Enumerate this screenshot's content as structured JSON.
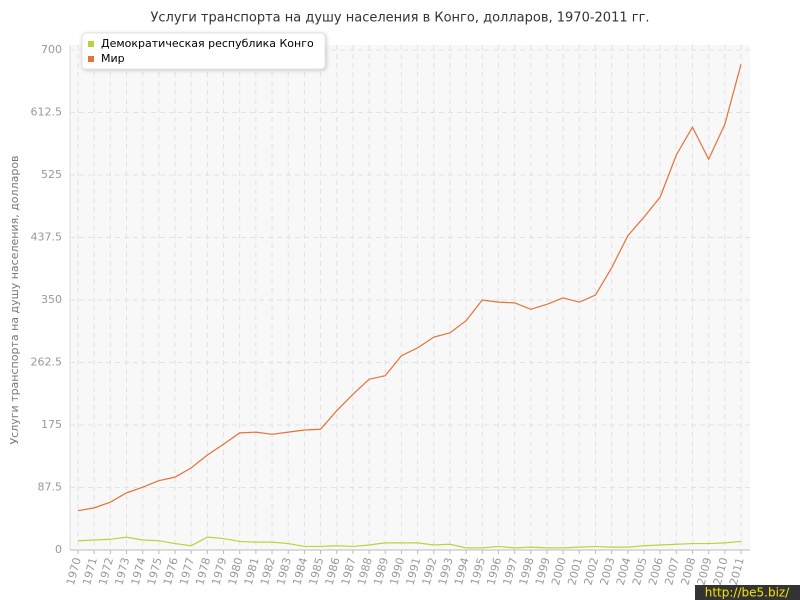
{
  "chart_data": {
    "type": "line",
    "title": "Услуги транспорта на душу населения в Конго, долларов, 1970-2011 гг.",
    "y_label": "Услуги транспорта на душу населения, долларов",
    "categories": [
      "1970",
      "1971",
      "1972",
      "1973",
      "1974",
      "1975",
      "1976",
      "1977",
      "1978",
      "1979",
      "1980",
      "1981",
      "1982",
      "1983",
      "1984",
      "1985",
      "1986",
      "1987",
      "1988",
      "1989",
      "1990",
      "1991",
      "1992",
      "1993",
      "1994",
      "1995",
      "1996",
      "1997",
      "1998",
      "1999",
      "2000",
      "2001",
      "2002",
      "2003",
      "2004",
      "2005",
      "2006",
      "2007",
      "2008",
      "2009",
      "2010",
      "2011"
    ],
    "series": [
      {
        "name": "Демократическая республика Конго",
        "color": "#b8d43a",
        "values": [
          13,
          14,
          15,
          18,
          14,
          13,
          9,
          6,
          18,
          16,
          12,
          11,
          11,
          9,
          5,
          5,
          6,
          5,
          7,
          10,
          10,
          10,
          7,
          8,
          3,
          3,
          5,
          3,
          4,
          3,
          3,
          4,
          5,
          4,
          4,
          6,
          7,
          8,
          9,
          9,
          10,
          12
        ]
      },
      {
        "name": "Мир",
        "color": "#e8703a",
        "values": [
          55,
          59,
          67,
          80,
          88,
          97,
          102,
          115,
          133,
          148,
          164,
          165,
          162,
          165,
          168,
          169,
          195,
          218,
          239,
          244,
          272,
          283,
          298,
          304,
          321,
          350,
          347,
          346,
          337,
          344,
          353,
          347,
          357,
          395,
          440,
          466,
          494,
          553,
          592,
          547,
          596,
          680
        ]
      }
    ],
    "ylim": [
      0,
      700
    ],
    "yticks": [
      0,
      87.5,
      175,
      262.5,
      350,
      437.5,
      525,
      612.5,
      700
    ],
    "grid": true,
    "legend_position": "top-left",
    "watermark": "http://be5.biz/"
  }
}
